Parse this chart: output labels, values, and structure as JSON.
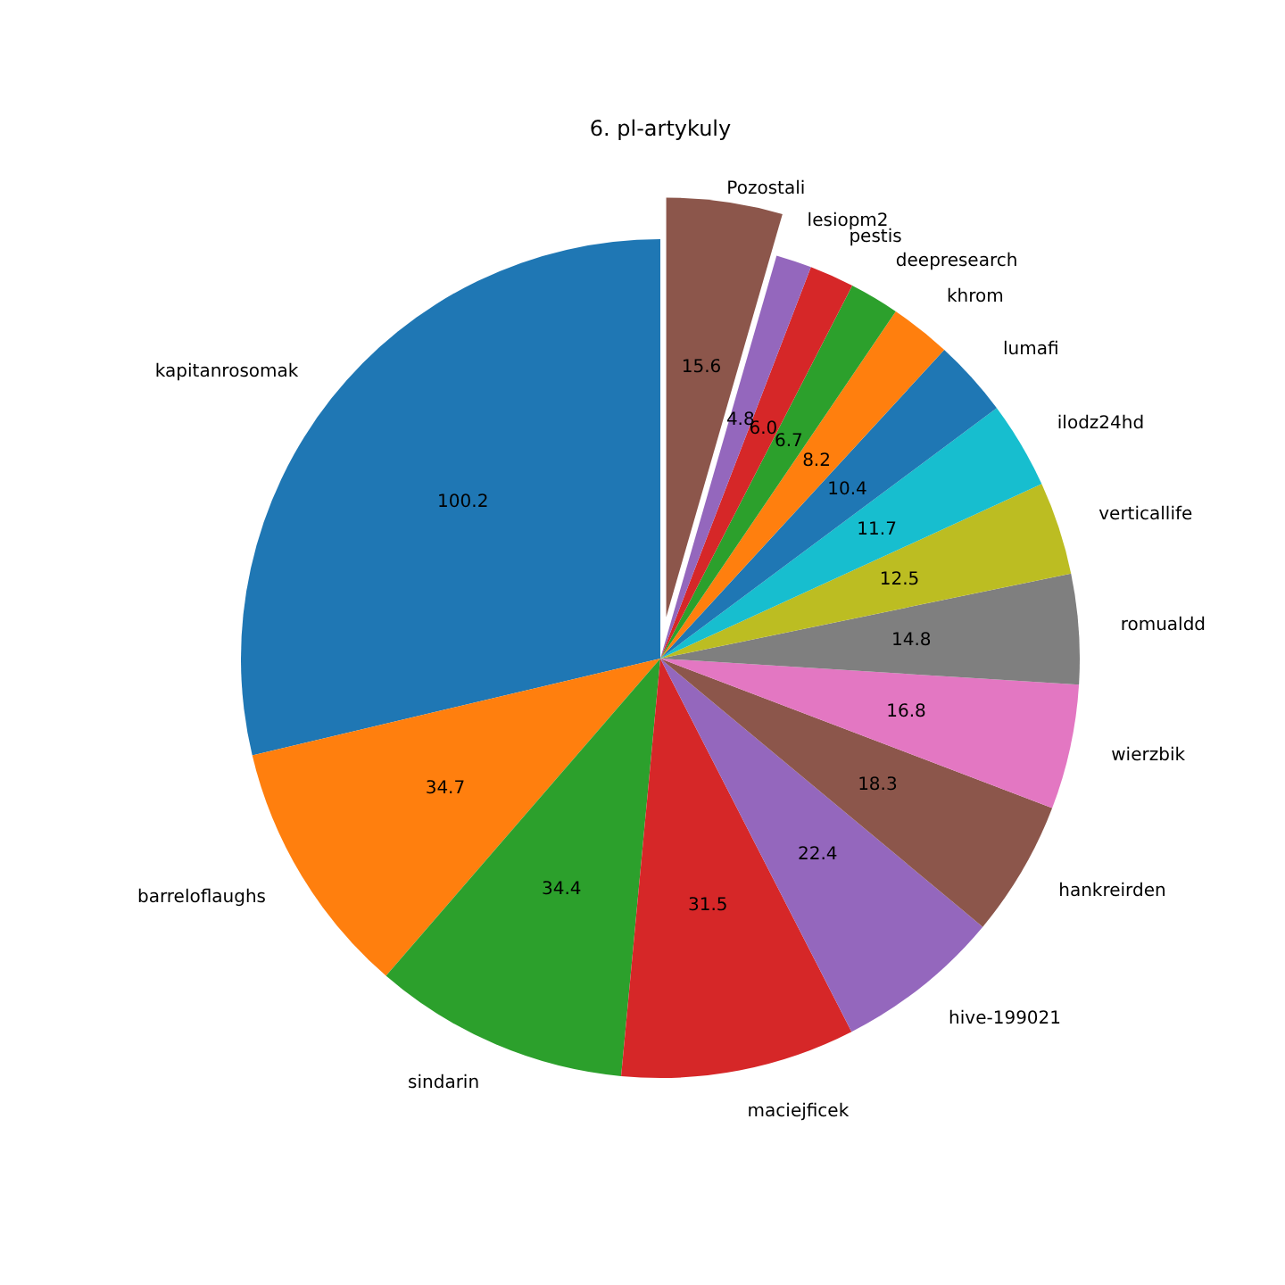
{
  "chart_data": {
    "type": "pie",
    "title": "6. pl-artykuly",
    "categories": [
      "kapitanrosomak",
      "barreloflaughs",
      "sindarin",
      "maciejficek",
      "hive-199021",
      "hankreirden",
      "wierzbik",
      "romualdd",
      "verticallife",
      "ilodz24hd",
      "lumafi",
      "khrom",
      "deepresearch",
      "pestis",
      "lesiopm2",
      "Pozostali"
    ],
    "values": [
      100.2,
      34.7,
      34.4,
      31.5,
      22.4,
      18.3,
      16.8,
      14.8,
      12.5,
      11.7,
      10.4,
      8.2,
      6.7,
      6.0,
      4.8,
      15.6
    ],
    "colors": [
      "#1f77b4",
      "#ff7f0e",
      "#2ca02c",
      "#d62728",
      "#9467bd",
      "#8c564b",
      "#e377c2",
      "#7f7f7f",
      "#bcbd22",
      "#17becf",
      "#1f77b4",
      "#ff7f0e",
      "#2ca02c",
      "#d62728",
      "#9467bd",
      "#8c564b"
    ],
    "value_labels": [
      "100.2",
      "34.7",
      "34.4",
      "31.5",
      "22.4",
      "18.3",
      "16.8",
      "14.8",
      "12.5",
      "11.7",
      "10.4",
      "8.2",
      "6.7",
      "6.0",
      "4.8",
      "15.6"
    ]
  }
}
